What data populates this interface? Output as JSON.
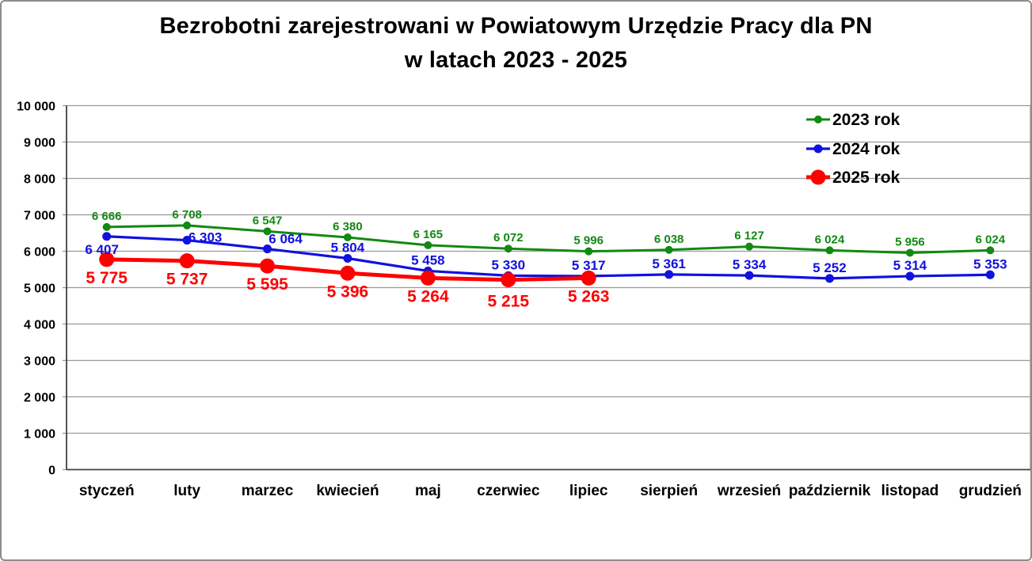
{
  "chart_data": {
    "type": "line",
    "title": "Bezrobotni zarejestrowani w Powiatowym Urzędzie Pracy dla PN w latach 2023 - 2025",
    "title_lines": [
      "Bezrobotni zarejestrowani w Powiatowym Urzędzie Pracy dla PN",
      "w latach 2023 - 2025"
    ],
    "categories": [
      "styczeń",
      "luty",
      "marzec",
      "kwiecień",
      "maj",
      "czerwiec",
      "lipiec",
      "sierpień",
      "wrzesień",
      "październik",
      "listopad",
      "grudzień"
    ],
    "y_axis": {
      "min": 0,
      "max": 10000,
      "step": 1000,
      "tick_labels": [
        "0",
        "1 000",
        "2 000",
        "3 000",
        "4 000",
        "5 000",
        "6 000",
        "7 000",
        "8 000",
        "9 000",
        "10 000"
      ]
    },
    "grid": true,
    "legend_position": "top-right",
    "series": [
      {
        "name": "2023 rok",
        "color": "#128912",
        "values": [
          6666,
          6708,
          6547,
          6380,
          6165,
          6072,
          5996,
          6038,
          6127,
          6024,
          5956,
          6024
        ],
        "labels": [
          "6 666",
          "6 708",
          "6 547",
          "6 380",
          "6 165",
          "6 072",
          "5 996",
          "6 038",
          "6 127",
          "6 024",
          "5 956",
          "6 024"
        ],
        "line_width": 3,
        "marker_radius": 5,
        "label_font_size": 15,
        "label_dy": -9,
        "label_offsets": {}
      },
      {
        "name": "2024 rok",
        "color": "#1111e0",
        "values": [
          6407,
          6303,
          6064,
          5804,
          5458,
          5330,
          5317,
          5361,
          5334,
          5252,
          5314,
          5353
        ],
        "labels": [
          "6 407",
          "6 303",
          "6 064",
          "5 804",
          "5 458",
          "5 330",
          "5 317",
          "5 361",
          "5 334",
          "5 252",
          "5 314",
          "5 353"
        ],
        "line_width": 3.2,
        "marker_radius": 5.5,
        "label_font_size": 17,
        "label_dy": -8,
        "label_offsets": {
          "0": [
            -6,
            22
          ],
          "1": [
            23,
            2
          ],
          "2": [
            23,
            -7
          ]
        }
      },
      {
        "name": "2025 rok",
        "color": "#ff0000",
        "values": [
          5775,
          5737,
          5595,
          5396,
          5264,
          5215,
          5263
        ],
        "labels": [
          "5 775",
          "5 737",
          "5 595",
          "5 396",
          "5 264",
          "5 215",
          "5 263"
        ],
        "line_width": 5,
        "marker_radius": 9.5,
        "label_font_size": 21,
        "label_dy": 30,
        "label_offsets": {
          "5": [
            0,
            34
          ]
        }
      }
    ],
    "colors": {
      "gridline": "#999999",
      "axis": "#404040",
      "frame": "#8c8c8c",
      "title_text": "#000000",
      "tick_label_text": "#000000"
    }
  }
}
